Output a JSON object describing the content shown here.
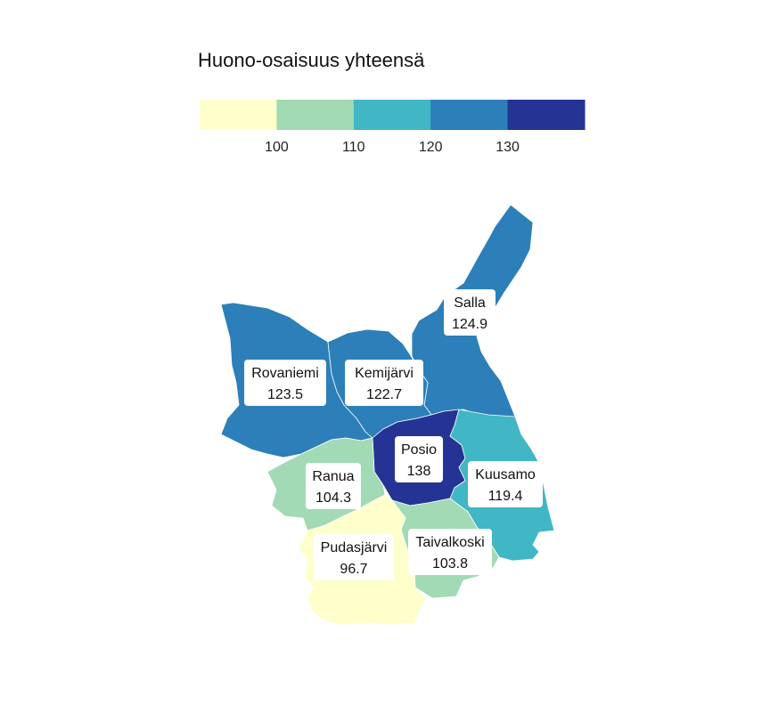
{
  "legend": {
    "title": "Huono-osaisuus yhteensä",
    "bins": [
      {
        "color": "#ffffcc"
      },
      {
        "color": "#a1dab4"
      },
      {
        "color": "#41b6c4"
      },
      {
        "color": "#2c7fb8"
      },
      {
        "color": "#253494"
      }
    ],
    "ticks": [
      "100",
      "110",
      "120",
      "130"
    ]
  },
  "regions": [
    {
      "id": "salla",
      "name": "Salla",
      "value": "124.9",
      "color": "#2c7fb8"
    },
    {
      "id": "rovaniemi",
      "name": "Rovaniemi",
      "value": "123.5",
      "color": "#2c7fb8"
    },
    {
      "id": "kemijarvi",
      "name": "Kemijärvi",
      "value": "122.7",
      "color": "#2c7fb8"
    },
    {
      "id": "posio",
      "name": "Posio",
      "value": "138",
      "color": "#253494"
    },
    {
      "id": "kuusamo",
      "name": "Kuusamo",
      "value": "119.4",
      "color": "#41b6c4"
    },
    {
      "id": "ranua",
      "name": "Ranua",
      "value": "104.3",
      "color": "#a1dab4"
    },
    {
      "id": "taivalkoski",
      "name": "Taivalkoski",
      "value": "103.8",
      "color": "#a1dab4"
    },
    {
      "id": "pudasjarvi",
      "name": "Pudasjärvi",
      "value": "96.7",
      "color": "#ffffcc"
    }
  ]
}
